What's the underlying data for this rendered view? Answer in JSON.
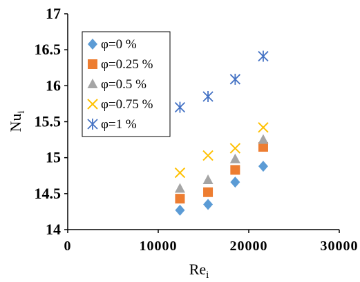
{
  "chart_data": {
    "type": "scatter",
    "xlabel_main": "Re",
    "xlabel_sub": "i",
    "ylabel_main": "Nu",
    "ylabel_sub": "i",
    "xlim": [
      0,
      30000
    ],
    "ylim": [
      14,
      17
    ],
    "x_ticks": [
      0,
      10000,
      20000,
      30000
    ],
    "x_tick_labels": [
      "0",
      "10000",
      "20000",
      "30000"
    ],
    "y_ticks": [
      14,
      14.5,
      15,
      15.5,
      16,
      16.5,
      17
    ],
    "y_tick_labels": [
      "14",
      "14.5",
      "15",
      "15.5",
      "16",
      "16.5",
      "17"
    ],
    "grid": false,
    "legend_position": "top-left",
    "series": [
      {
        "name": "φ=0 %",
        "marker": "diamond",
        "color": "#5B9BD5",
        "x": [
          12400,
          15500,
          18500,
          21600
        ],
        "y": [
          14.27,
          14.35,
          14.66,
          14.88
        ]
      },
      {
        "name": "φ=0.25 %",
        "marker": "square",
        "color": "#ED7D31",
        "x": [
          12400,
          15500,
          18500,
          21600
        ],
        "y": [
          14.43,
          14.52,
          14.83,
          15.15
        ]
      },
      {
        "name": "φ=0.5 %",
        "marker": "triangle",
        "color": "#A5A5A5",
        "x": [
          12400,
          15500,
          18500,
          21600
        ],
        "y": [
          14.57,
          14.69,
          14.98,
          15.25
        ]
      },
      {
        "name": "φ=0.75 %",
        "marker": "x",
        "color": "#FFC000",
        "x": [
          12400,
          15500,
          18500,
          21600
        ],
        "y": [
          14.79,
          15.03,
          15.13,
          15.42
        ]
      },
      {
        "name": "φ=1 %",
        "marker": "asterisk",
        "color": "#4472C4",
        "x": [
          12400,
          15500,
          18500,
          21600
        ],
        "y": [
          15.7,
          15.85,
          16.09,
          16.41
        ]
      }
    ]
  }
}
